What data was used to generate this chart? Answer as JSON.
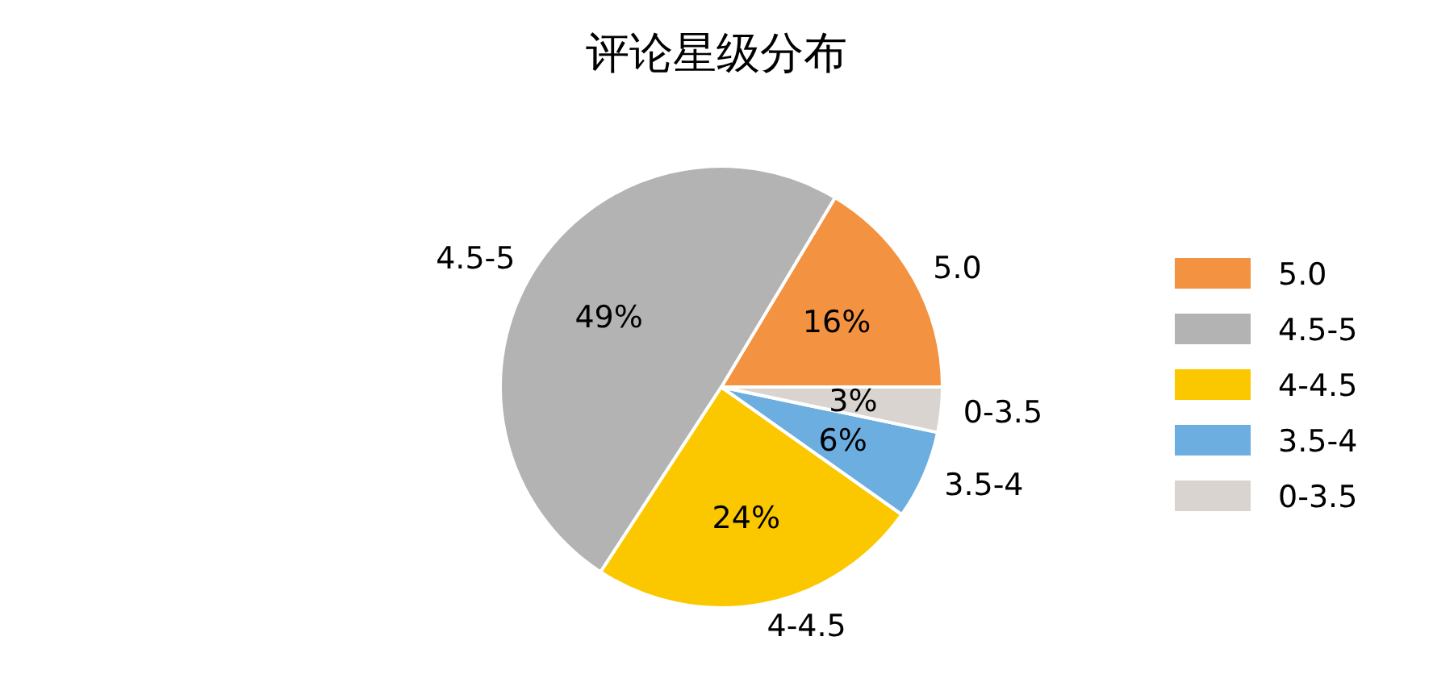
{
  "chart_data": {
    "type": "pie",
    "title": "评论星级分布",
    "categories": [
      "5.0",
      "4.5-5",
      "4-4.5",
      "3.5-4",
      "0-3.5"
    ],
    "values": [
      16.4,
      49.4,
      24.4,
      6.5,
      3.3
    ],
    "value_labels": [
      "16%",
      "49%",
      "24%",
      "6%",
      "3%"
    ],
    "colors": [
      "#f39240",
      "#b3b3b3",
      "#fbc800",
      "#6caee0",
      "#d9d4cf"
    ],
    "legend": "right"
  }
}
